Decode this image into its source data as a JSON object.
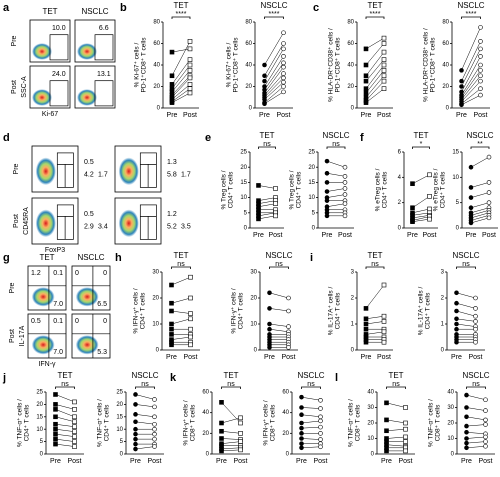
{
  "panels": [
    "a",
    "b",
    "c",
    "d",
    "e",
    "f",
    "g",
    "h",
    "i",
    "j",
    "k",
    "l"
  ],
  "flow_panels": [
    {
      "columns": [
        "TET",
        "NSCLC"
      ],
      "rows": [
        "Pre",
        "Post"
      ],
      "xlabel": "Ki-67",
      "ylabel": "SSC-A",
      "gates": [
        [
          [
            "10.0"
          ],
          [
            "6.6"
          ]
        ],
        [
          [
            "24.0"
          ],
          [
            "13.1"
          ]
        ]
      ]
    },
    {
      "rows": [
        "Pre",
        "Post"
      ],
      "xlabel": "FoxP3",
      "ylabel": "CD45RA",
      "gates": [
        [
          [
            "0.5",
            "4.2",
            "1.7"
          ],
          [
            "1.3",
            "5.8",
            "1.7"
          ]
        ],
        [
          [
            "0.5",
            "2.9",
            "3.4"
          ],
          [
            "1.2",
            "5.2",
            "3.5"
          ]
        ]
      ]
    },
    {
      "columns": [
        "TET",
        "NSCLC"
      ],
      "rows": [
        "Pre",
        "Post"
      ],
      "xlabel": "IFN-γ",
      "ylabel": "IL-17A",
      "gates": [
        [
          [
            "1.2",
            "0.1",
            "7.0"
          ],
          [
            "0",
            "0",
            "6.5"
          ]
        ],
        [
          [
            "0.5",
            "0.1",
            "7.0"
          ],
          [
            "0",
            "0",
            "5.3"
          ]
        ]
      ]
    }
  ],
  "chart_data": [
    {
      "type": "paired",
      "title": "TET",
      "ylabel": [
        "% Ki-67⁺ cells /",
        "PD-1⁺CD8⁺ T cells"
      ],
      "significance": "****",
      "marker": "square",
      "categories": [
        "Pre",
        "Post"
      ],
      "ylim": [
        0,
        80
      ],
      "yticks": [
        0,
        20,
        40,
        60,
        80
      ],
      "pre": [
        52,
        30,
        22,
        18,
        15,
        12,
        10,
        8,
        6,
        5
      ],
      "post": [
        55,
        62,
        45,
        40,
        35,
        30,
        28,
        22,
        18,
        14
      ]
    },
    {
      "type": "paired",
      "title": "NSCLC",
      "ylabel": [
        "% Ki-67⁺ cells /",
        "PD-1⁺CD8⁺ T cells"
      ],
      "significance": "****",
      "marker": "circle",
      "categories": [
        "Pre",
        "Post"
      ],
      "ylim": [
        0,
        80
      ],
      "yticks": [
        0,
        20,
        40,
        60,
        80
      ],
      "pre": [
        40,
        30,
        25,
        20,
        17,
        14,
        12,
        10,
        8,
        5,
        4
      ],
      "post": [
        70,
        60,
        55,
        48,
        42,
        38,
        32,
        28,
        24,
        20,
        15
      ]
    },
    {
      "type": "paired",
      "title": "TET",
      "ylabel": [
        "% HLA-DR⁺CD38⁺ cells /",
        "PD-1⁺CD8⁺ T cells"
      ],
      "significance": "****",
      "marker": "square",
      "categories": [
        "Pre",
        "Post"
      ],
      "ylim": [
        0,
        80
      ],
      "yticks": [
        0,
        20,
        40,
        60,
        80
      ],
      "pre": [
        55,
        40,
        30,
        25,
        18,
        14,
        10,
        7,
        5
      ],
      "post": [
        65,
        60,
        52,
        45,
        40,
        35,
        30,
        25,
        18
      ]
    },
    {
      "type": "paired",
      "title": "NSCLC",
      "ylabel": [
        "% HLA-DR⁺CD38⁺ cells /",
        "PD-1⁺CD8⁺ T cells"
      ],
      "significance": "****",
      "marker": "circle",
      "categories": [
        "Pre",
        "Post"
      ],
      "ylim": [
        0,
        80
      ],
      "yticks": [
        0,
        20,
        40,
        60,
        80
      ],
      "pre": [
        35,
        25,
        20,
        15,
        12,
        10,
        8,
        6,
        4,
        3
      ],
      "post": [
        75,
        62,
        55,
        48,
        40,
        35,
        30,
        25,
        18,
        12
      ]
    },
    {
      "type": "paired",
      "title": "TET",
      "ylabel": [
        "% Treg cells /",
        "CD4⁺ T cells"
      ],
      "significance": "ns",
      "marker": "square",
      "categories": [
        "Pre",
        "Post"
      ],
      "ylim": [
        0,
        25
      ],
      "yticks": [
        0,
        5,
        10,
        15,
        20,
        25
      ],
      "pre": [
        14,
        9,
        8,
        7,
        6,
        5,
        4,
        3
      ],
      "post": [
        13,
        10,
        9,
        8,
        6,
        5,
        5,
        4
      ]
    },
    {
      "type": "paired",
      "title": "NSCLC",
      "ylabel": [
        "% Treg cells /",
        "CD4⁺ T cells"
      ],
      "significance": "ns",
      "marker": "circle",
      "categories": [
        "Pre",
        "Post"
      ],
      "ylim": [
        0,
        25
      ],
      "yticks": [
        0,
        5,
        10,
        15,
        20,
        25
      ],
      "pre": [
        22,
        18,
        15,
        12,
        10,
        9,
        7,
        6,
        5,
        4
      ],
      "post": [
        20,
        17,
        15,
        13,
        11,
        9,
        8,
        6,
        5,
        4
      ]
    },
    {
      "type": "paired",
      "title": "TET",
      "ylabel": [
        "% eTreg cells /",
        "CD4⁺ T cells"
      ],
      "significance": "*",
      "marker": "square",
      "categories": [
        "Pre",
        "Post"
      ],
      "ylim": [
        0,
        6
      ],
      "yticks": [
        0,
        2,
        4,
        6
      ],
      "pre": [
        3.5,
        1.6,
        1.2,
        1,
        0.8,
        0.6,
        0.5
      ],
      "post": [
        4.2,
        2.5,
        1.5,
        1.2,
        1,
        0.9,
        0.7
      ]
    },
    {
      "type": "paired",
      "title": "NSCLC",
      "ylabel": [
        "% eTreg cells /",
        "CD4⁺ T cells"
      ],
      "significance": "**",
      "marker": "circle",
      "categories": [
        "Pre",
        "Post"
      ],
      "ylim": [
        0,
        15
      ],
      "yticks": [
        0,
        5,
        10,
        15
      ],
      "pre": [
        12,
        8,
        6,
        4,
        3,
        2.5,
        2,
        1.5,
        1
      ],
      "post": [
        14,
        9,
        7,
        5,
        4,
        3.5,
        3,
        2.5,
        2
      ]
    },
    {
      "type": "paired",
      "title": "TET",
      "ylabel": [
        "% IFN-γ⁺ cells /",
        "CD4⁺ T cells"
      ],
      "significance": "ns",
      "marker": "square",
      "categories": [
        "Pre",
        "Post"
      ],
      "ylim": [
        0,
        30
      ],
      "yticks": [
        0,
        10,
        20,
        30
      ],
      "pre": [
        25,
        18,
        15,
        10,
        8,
        6,
        4,
        3,
        2
      ],
      "post": [
        28,
        20,
        14,
        12,
        8,
        6,
        5,
        3,
        2
      ]
    },
    {
      "type": "paired",
      "title": "NSCLC",
      "ylabel": [
        "% IFN-γ⁺ cells /",
        "CD4⁺ T cells"
      ],
      "significance": "ns",
      "marker": "circle",
      "categories": [
        "Pre",
        "Post"
      ],
      "ylim": [
        0,
        30
      ],
      "yticks": [
        0,
        10,
        20,
        30
      ],
      "pre": [
        22,
        16,
        10,
        8,
        6,
        5,
        4,
        3,
        2,
        1
      ],
      "post": [
        20,
        15,
        9,
        7,
        6,
        5,
        4,
        3,
        2,
        1
      ]
    },
    {
      "type": "paired",
      "title": "TET",
      "ylabel": [
        "% IL-17A⁺ cells /",
        "CD4⁺ T cells"
      ],
      "significance": "ns",
      "marker": "square",
      "categories": [
        "Pre",
        "Post"
      ],
      "ylim": [
        0,
        3
      ],
      "yticks": [
        0,
        1,
        2,
        3
      ],
      "pre": [
        1.6,
        1.2,
        1,
        0.8,
        0.6,
        0.5,
        0.4,
        0.3
      ],
      "post": [
        2.5,
        1.3,
        1.1,
        0.8,
        0.7,
        0.5,
        0.4,
        0.3
      ]
    },
    {
      "type": "paired",
      "title": "NSCLC",
      "ylabel": [
        "% IL-17A⁺ cells /",
        "CD4⁺ T cells"
      ],
      "significance": "ns",
      "marker": "circle",
      "categories": [
        "Pre",
        "Post"
      ],
      "ylim": [
        0,
        3
      ],
      "yticks": [
        0,
        1,
        2,
        3
      ],
      "pre": [
        2.2,
        1.8,
        1.5,
        1.2,
        1,
        0.8,
        0.6,
        0.5,
        0.4,
        0.3
      ],
      "post": [
        2,
        1.6,
        1.3,
        1.1,
        0.9,
        0.8,
        0.6,
        0.5,
        0.4,
        0.3
      ]
    },
    {
      "type": "paired",
      "title": "TET",
      "ylabel": [
        "% TNF-α⁺ cells /",
        "CD4⁺ T cells"
      ],
      "significance": "ns",
      "marker": "square",
      "categories": [
        "Pre",
        "Post"
      ],
      "ylim": [
        0,
        25
      ],
      "yticks": [
        0,
        5,
        10,
        15,
        20,
        25
      ],
      "pre": [
        24,
        20,
        18,
        15,
        12,
        10,
        8,
        6,
        4
      ],
      "post": [
        21,
        18,
        15,
        13,
        11,
        9,
        7,
        5,
        3
      ]
    },
    {
      "type": "paired",
      "title": "NSCLC",
      "ylabel": [
        "% TNF-α⁺ cells /",
        "CD4⁺ T cells"
      ],
      "significance": "ns",
      "marker": "circle",
      "categories": [
        "Pre",
        "Post"
      ],
      "ylim": [
        0,
        25
      ],
      "yticks": [
        0,
        5,
        10,
        15,
        20,
        25
      ],
      "pre": [
        24,
        20,
        16,
        13,
        10,
        8,
        6,
        4,
        2
      ],
      "post": [
        22,
        19,
        15,
        12,
        10,
        8,
        6,
        4,
        3
      ]
    },
    {
      "type": "paired",
      "title": "TET",
      "ylabel": [
        "% IFN-γ⁺ cells /",
        "CD8⁺ T cells"
      ],
      "significance": "ns",
      "marker": "square",
      "categories": [
        "Pre",
        "Post"
      ],
      "ylim": [
        0,
        60
      ],
      "yticks": [
        0,
        20,
        40,
        60
      ],
      "pre": [
        50,
        30,
        22,
        15,
        10,
        8,
        5,
        3
      ],
      "post": [
        30,
        35,
        20,
        14,
        12,
        8,
        6,
        4
      ]
    },
    {
      "type": "paired",
      "title": "NSCLC",
      "ylabel": [
        "% IFN-γ⁺ cells /",
        "CD8⁺ T cells"
      ],
      "significance": "ns",
      "marker": "circle",
      "categories": [
        "Pre",
        "Post"
      ],
      "ylim": [
        0,
        60
      ],
      "yticks": [
        0,
        20,
        40,
        60
      ],
      "pre": [
        55,
        45,
        38,
        30,
        25,
        20,
        15,
        10,
        6
      ],
      "post": [
        52,
        44,
        36,
        32,
        26,
        20,
        14,
        10,
        7
      ]
    },
    {
      "type": "paired",
      "title": "TET",
      "ylabel": [
        "% TNF-α⁺ cells /",
        "CD8⁺ T cells"
      ],
      "significance": "ns",
      "marker": "square",
      "categories": [
        "Pre",
        "Post"
      ],
      "ylim": [
        0,
        40
      ],
      "yticks": [
        0,
        10,
        20,
        30,
        40
      ],
      "pre": [
        33,
        22,
        15,
        10,
        8,
        6,
        4,
        2
      ],
      "post": [
        30,
        20,
        16,
        11,
        8,
        5,
        4,
        2
      ]
    },
    {
      "type": "paired",
      "title": "NSCLC",
      "ylabel": [
        "% TNF-α⁺ cells /",
        "CD8⁺ T cells"
      ],
      "significance": "ns",
      "marker": "circle",
      "categories": [
        "Pre",
        "Post"
      ],
      "ylim": [
        0,
        40
      ],
      "yticks": [
        0,
        10,
        20,
        30,
        40
      ],
      "pre": [
        38,
        30,
        24,
        18,
        14,
        10,
        7,
        4
      ],
      "post": [
        35,
        28,
        22,
        19,
        13,
        11,
        8,
        5
      ]
    }
  ]
}
